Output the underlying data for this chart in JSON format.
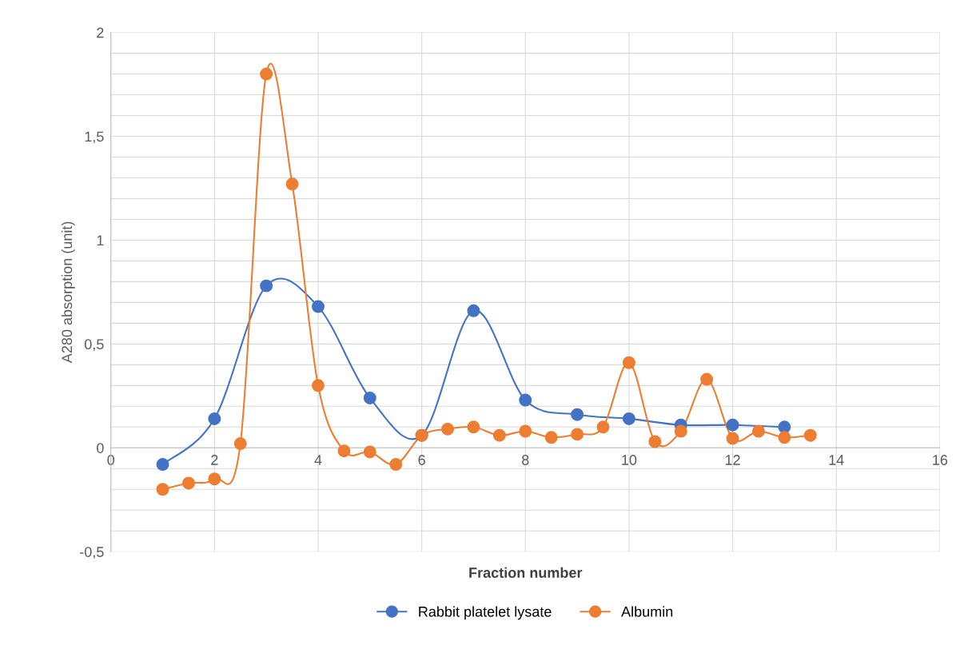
{
  "chart_data": {
    "type": "line",
    "xlabel": "Fraction number",
    "ylabel": "A280 absorption (unit)",
    "series": [
      {
        "name": "Rabbit platelet lysate",
        "color": "#4472c4",
        "x": [
          1,
          2,
          3,
          4,
          5,
          6,
          7,
          8,
          9,
          10,
          11,
          12,
          13
        ],
        "values": [
          -0.08,
          0.14,
          0.78,
          0.68,
          0.24,
          0.06,
          0.66,
          0.23,
          0.16,
          0.14,
          0.11,
          0.11,
          0.1
        ]
      },
      {
        "name": "Albumin",
        "color": "#ed7d31",
        "x": [
          1,
          1.5,
          2,
          2.5,
          3,
          3.5,
          4,
          4.5,
          5,
          5.5,
          6,
          6.5,
          7,
          7.5,
          8,
          8.5,
          9,
          9.5,
          10,
          10.5,
          11,
          11.5,
          12,
          12.5,
          13,
          13.5
        ],
        "values": [
          -0.2,
          -0.17,
          -0.15,
          0.02,
          1.8,
          1.27,
          0.3,
          -0.015,
          -0.02,
          -0.08,
          0.06,
          0.09,
          0.1,
          0.06,
          0.08,
          0.05,
          0.065,
          0.1,
          0.41,
          0.03,
          0.08,
          0.33,
          0.045,
          0.08,
          0.05,
          0.06
        ]
      }
    ],
    "xlim": [
      0,
      16
    ],
    "xticks": [
      0,
      2,
      4,
      6,
      8,
      10,
      12,
      14,
      16
    ],
    "ylim": [
      -0.5,
      2
    ],
    "yticks": [
      {
        "value": -0.5,
        "label": "-0,5"
      },
      {
        "value": -0.4,
        "label": null
      },
      {
        "value": -0.3,
        "label": null
      },
      {
        "value": -0.2,
        "label": null
      },
      {
        "value": -0.1,
        "label": null
      },
      0,
      {
        "value": 0.1,
        "label": null
      },
      {
        "value": 0.2,
        "label": null
      },
      {
        "value": 0.3,
        "label": null
      },
      {
        "value": 0.4,
        "label": null
      },
      {
        "value": 0.5,
        "label": "0,5"
      },
      {
        "value": 0.6,
        "label": null
      },
      {
        "value": 0.7,
        "label": null
      },
      {
        "value": 0.8,
        "label": null
      },
      {
        "value": 0.9,
        "label": null
      },
      1,
      {
        "value": 1.1,
        "label": null
      },
      {
        "value": 1.2,
        "label": null
      },
      {
        "value": 1.3,
        "label": null
      },
      {
        "value": 1.4,
        "label": null
      },
      {
        "value": 1.5,
        "label": "1,5"
      },
      {
        "value": 1.6,
        "label": null
      },
      {
        "value": 1.7,
        "label": null
      },
      {
        "value": 1.8,
        "label": null
      },
      {
        "value": 1.9,
        "label": null
      },
      2
    ],
    "grid": true,
    "legend": "bottom",
    "marker": "circle",
    "line_style": "solid"
  }
}
